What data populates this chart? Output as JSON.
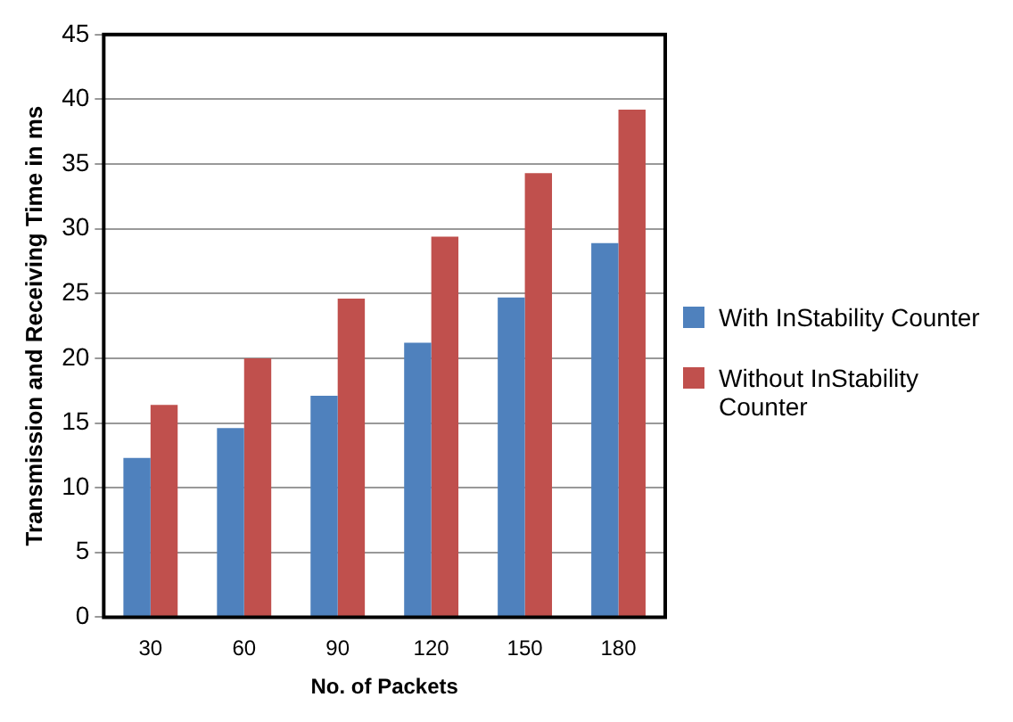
{
  "chart_data": {
    "type": "bar",
    "xlabel": "No. of Packets",
    "ylabel": "Transmission and Receiving Time in ms",
    "categories": [
      "30",
      "60",
      "90",
      "120",
      "150",
      "180"
    ],
    "series": [
      {
        "name": "With InStability Counter",
        "color": "#4f81bd",
        "values": [
          12.3,
          14.6,
          17.1,
          21.2,
          24.7,
          28.9
        ]
      },
      {
        "name": "Without InStability Counter",
        "color": "#c0504d",
        "values": [
          16.4,
          20.0,
          24.6,
          29.4,
          34.3,
          39.2
        ]
      }
    ],
    "ylim": [
      0,
      45
    ],
    "yticks": [
      0,
      5,
      10,
      15,
      20,
      25,
      30,
      35,
      40,
      45
    ],
    "grid": "y",
    "legend": "right"
  }
}
